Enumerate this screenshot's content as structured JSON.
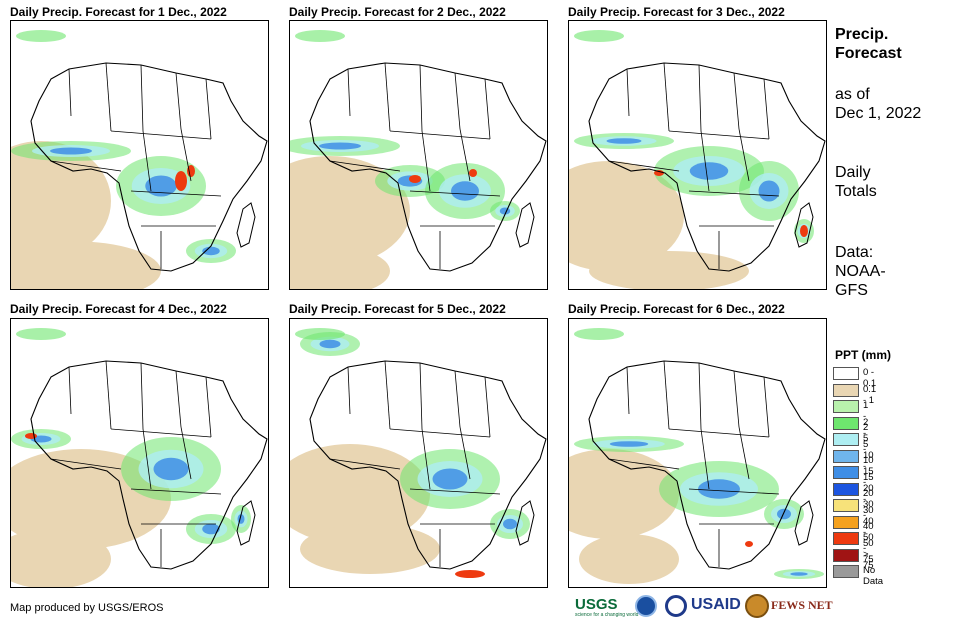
{
  "panels": [
    {
      "title": "Daily Precip. Forecast for 1 Dec., 2022"
    },
    {
      "title": "Daily Precip. Forecast for 2 Dec., 2022"
    },
    {
      "title": "Daily Precip. Forecast for 3 Dec., 2022"
    },
    {
      "title": "Daily Precip. Forecast for 4 Dec., 2022"
    },
    {
      "title": "Daily Precip. Forecast for 5 Dec., 2022"
    },
    {
      "title": "Daily Precip. Forecast for 6 Dec., 2022"
    }
  ],
  "side": {
    "title_line1": "Precip.",
    "title_line2": "Forecast",
    "asof_line1": "as of",
    "asof_line2": "Dec 1, 2022",
    "totals_line1": "Daily",
    "totals_line2": "Totals",
    "data_line1": "Data:",
    "data_line2": "NOAA-",
    "data_line3": "GFS"
  },
  "legend": {
    "title": "PPT (mm)",
    "items": [
      {
        "label": "0 - 0.1",
        "color": "#ffffff"
      },
      {
        "label": "0.1 - 1",
        "color": "#e9d6b3"
      },
      {
        "label": "1 - 2",
        "color": "#b9f2ad"
      },
      {
        "label": "2 - 5",
        "color": "#6ee66e"
      },
      {
        "label": "5 - 10",
        "color": "#aeeef2"
      },
      {
        "label": "10 - 15",
        "color": "#6fb5ec"
      },
      {
        "label": "15 - 20",
        "color": "#3f8ee6"
      },
      {
        "label": "20 - 30",
        "color": "#1c55e0"
      },
      {
        "label": "30 - 40",
        "color": "#f7e27a"
      },
      {
        "label": "40 - 50",
        "color": "#f5a11e"
      },
      {
        "label": "50 - 75",
        "color": "#ee3a10"
      },
      {
        "label": "> 75",
        "color": "#a01414"
      },
      {
        "label": "No Data",
        "color": "#9a9a9a"
      }
    ]
  },
  "credit": "Map produced by USGS/EROS",
  "logos": {
    "usgs": "USGS",
    "usgs_tagline": "science for a changing world",
    "usaid": "USAID",
    "fews": "FEWS NET"
  }
}
